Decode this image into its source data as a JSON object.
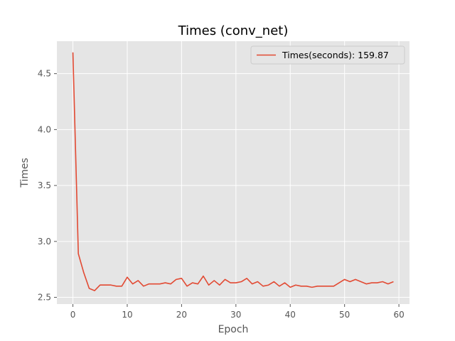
{
  "chart_data": {
    "type": "line",
    "title": "Times (conv_net)",
    "xlabel": "Epoch",
    "ylabel": "Times",
    "xlim": [
      -2.95,
      61.95
    ],
    "ylim": [
      2.44,
      4.79
    ],
    "xticks": [
      0,
      10,
      20,
      30,
      40,
      50,
      60
    ],
    "xtick_labels": [
      "0",
      "10",
      "20",
      "30",
      "40",
      "50",
      "60"
    ],
    "yticks": [
      2.5,
      3.0,
      3.5,
      4.0,
      4.5
    ],
    "ytick_labels": [
      "2.5",
      "3.0",
      "3.5",
      "4.0",
      "4.5"
    ],
    "grid": true,
    "legend_position": "top-right",
    "series": [
      {
        "name": "Times(seconds): 159.87",
        "color": "#e24a33",
        "x": [
          0,
          1,
          2,
          3,
          4,
          5,
          6,
          7,
          8,
          9,
          10,
          11,
          12,
          13,
          14,
          15,
          16,
          17,
          18,
          19,
          20,
          21,
          22,
          23,
          24,
          25,
          26,
          27,
          28,
          29,
          30,
          31,
          32,
          33,
          34,
          35,
          36,
          37,
          38,
          39,
          40,
          41,
          42,
          43,
          44,
          45,
          46,
          47,
          48,
          49,
          50,
          51,
          52,
          53,
          54,
          55,
          56,
          57,
          58,
          59
        ],
        "values": [
          4.69,
          2.89,
          2.72,
          2.58,
          2.56,
          2.61,
          2.61,
          2.61,
          2.6,
          2.6,
          2.68,
          2.62,
          2.65,
          2.6,
          2.62,
          2.62,
          2.62,
          2.63,
          2.62,
          2.66,
          2.67,
          2.6,
          2.63,
          2.62,
          2.69,
          2.61,
          2.65,
          2.61,
          2.66,
          2.63,
          2.63,
          2.64,
          2.67,
          2.62,
          2.64,
          2.6,
          2.61,
          2.64,
          2.6,
          2.63,
          2.59,
          2.61,
          2.6,
          2.6,
          2.59,
          2.6,
          2.6,
          2.6,
          2.6,
          2.63,
          2.66,
          2.64,
          2.66,
          2.64,
          2.62,
          2.63,
          2.63,
          2.64,
          2.62,
          2.64
        ]
      }
    ]
  }
}
